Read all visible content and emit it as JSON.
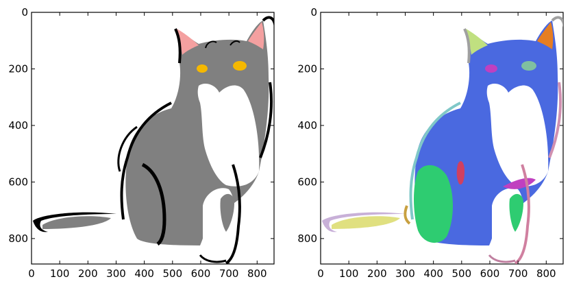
{
  "chart_data": [
    {
      "type": "image",
      "panel": "left",
      "description_style": "grayscale cat illustration with pink ears and orange eyes",
      "xlim": [
        0,
        860
      ],
      "ylim": [
        890,
        0
      ],
      "xticks": [
        0,
        100,
        200,
        300,
        400,
        500,
        600,
        700,
        800
      ],
      "yticks": [
        0,
        200,
        400,
        600,
        800
      ],
      "xtick_labels": [
        "0",
        "100",
        "200",
        "300",
        "400",
        "500",
        "600",
        "700",
        "800"
      ],
      "ytick_labels": [
        "0",
        "200",
        "400",
        "600",
        "800"
      ],
      "colors": {
        "body": "#808080",
        "outline": "#000000",
        "ear": "#f4a0a0",
        "eye": "#f5b800",
        "chest": "#ffffff"
      }
    },
    {
      "type": "image",
      "panel": "right",
      "description_style": "segmentation of the same cat into colored regions",
      "xlim": [
        0,
        860
      ],
      "ylim": [
        890,
        0
      ],
      "xticks": [
        0,
        100,
        200,
        300,
        400,
        500,
        600,
        700,
        800
      ],
      "yticks": [
        0,
        200,
        400,
        600,
        800
      ],
      "xtick_labels": [
        "0",
        "100",
        "200",
        "300",
        "400",
        "500",
        "600",
        "700",
        "800"
      ],
      "ytick_labels": [
        "0",
        "200",
        "400",
        "600",
        "800"
      ],
      "colors": {
        "body": "#4a69e0",
        "leg": "#2ecc71",
        "ear": "#e67e22",
        "tail": "#e0e080",
        "accent1": "#c040c0",
        "accent2": "#80c0c0",
        "accent3": "#d080a0",
        "chest": "#ffffff"
      }
    }
  ]
}
